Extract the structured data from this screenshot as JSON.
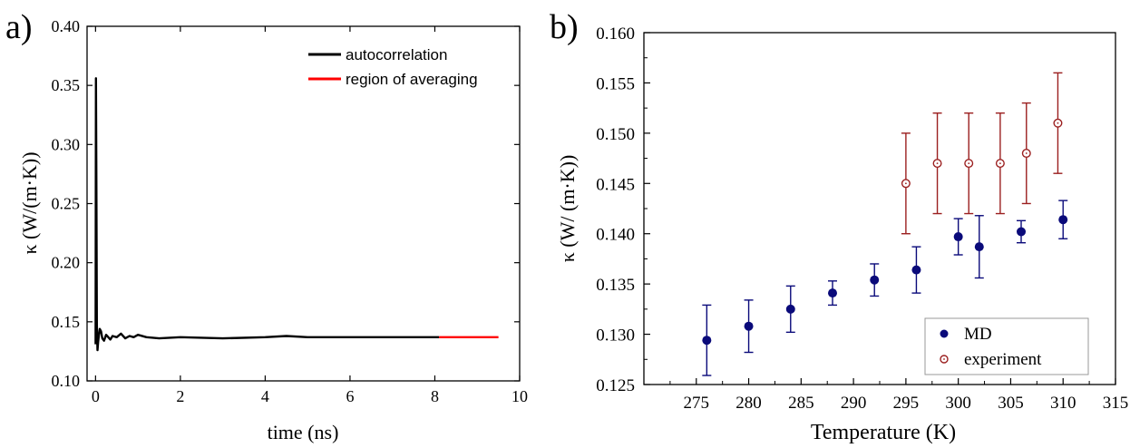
{
  "chart_data": [
    {
      "panel_label": "a)",
      "type": "line",
      "title": "",
      "xlabel": "time (ns)",
      "ylabel": "κ (W/(m·K))",
      "xlim": [
        -0.2,
        10
      ],
      "ylim": [
        0.1,
        0.4
      ],
      "xticks": [
        "0",
        "2",
        "4",
        "6",
        "8",
        "10"
      ],
      "yticks": [
        "0.10",
        "0.15",
        "0.20",
        "0.25",
        "0.30",
        "0.35",
        "0.40"
      ],
      "grid": false,
      "legend_position": "top-right",
      "series": [
        {
          "name": "autocorrelation",
          "color": "#000000",
          "x": [
            0.0,
            0.01,
            0.02,
            0.03,
            0.045,
            0.06,
            0.08,
            0.1,
            0.13,
            0.16,
            0.2,
            0.25,
            0.3,
            0.35,
            0.4,
            0.5,
            0.6,
            0.7,
            0.8,
            0.9,
            1.0,
            1.2,
            1.5,
            2.0,
            3.0,
            4.0,
            4.5,
            5.0,
            6.0,
            7.0,
            8.0,
            8.1
          ],
          "y": [
            0.131,
            0.356,
            0.26,
            0.147,
            0.126,
            0.133,
            0.139,
            0.144,
            0.142,
            0.136,
            0.134,
            0.139,
            0.137,
            0.135,
            0.138,
            0.137,
            0.14,
            0.136,
            0.138,
            0.137,
            0.139,
            0.137,
            0.136,
            0.137,
            0.136,
            0.137,
            0.138,
            0.137,
            0.137,
            0.137,
            0.137,
            0.137
          ]
        },
        {
          "name": "region of averaging",
          "color": "#ff0000",
          "x": [
            8.1,
            8.5,
            9.0,
            9.5
          ],
          "y": [
            0.137,
            0.137,
            0.137,
            0.137
          ]
        }
      ]
    },
    {
      "panel_label": "b)",
      "type": "scatter",
      "title": "",
      "xlabel": "Temperature (K)",
      "ylabel": "κ (W/ (m·K))",
      "xlim": [
        270,
        315
      ],
      "ylim": [
        0.125,
        0.16
      ],
      "xticks": [
        "275",
        "280",
        "285",
        "290",
        "295",
        "300",
        "305",
        "310",
        "315"
      ],
      "yticks": [
        "0.125",
        "0.130",
        "0.135",
        "0.140",
        "0.145",
        "0.150",
        "0.155",
        "0.160"
      ],
      "grid": false,
      "legend_position": "bottom-right",
      "series": [
        {
          "name": "MD",
          "color": "#0a0a7a",
          "marker": "filled-circle",
          "x": [
            276,
            280,
            284,
            288,
            292,
            296,
            300,
            302,
            306,
            310
          ],
          "y": [
            0.1294,
            0.1308,
            0.1325,
            0.1341,
            0.1354,
            0.1364,
            0.1397,
            0.1387,
            0.1402,
            0.1414
          ],
          "err": [
            0.0035,
            0.0026,
            0.0023,
            0.0012,
            0.0016,
            0.0023,
            0.0018,
            0.0031,
            0.0011,
            0.0019
          ]
        },
        {
          "name": "experiment",
          "color": "#9b1f1f",
          "marker": "open-circle",
          "x": [
            295,
            298,
            301,
            304,
            306.5,
            309.5
          ],
          "y": [
            0.145,
            0.147,
            0.147,
            0.147,
            0.148,
            0.151
          ],
          "err": [
            0.005,
            0.005,
            0.005,
            0.005,
            0.005,
            0.005
          ]
        }
      ]
    }
  ]
}
